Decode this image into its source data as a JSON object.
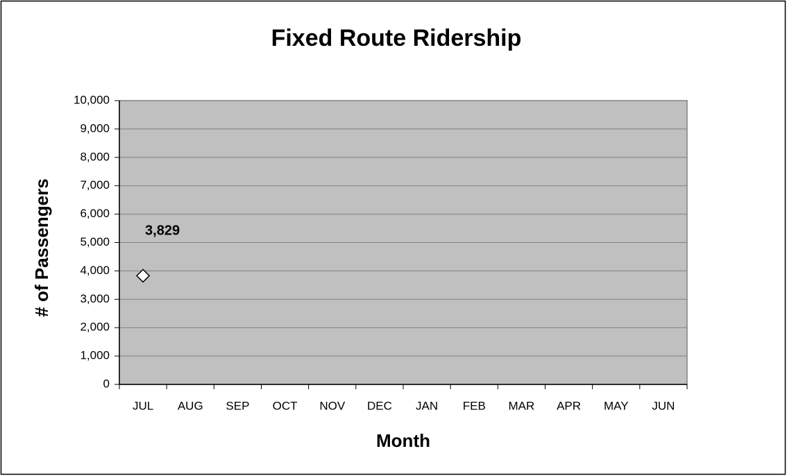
{
  "chart_data": {
    "type": "line",
    "title": "Fixed Route Ridership",
    "x_label": "Month",
    "y_label": "# of Passengers",
    "categories": [
      "JUL",
      "AUG",
      "SEP",
      "OCT",
      "NOV",
      "DEC",
      "JAN",
      "FEB",
      "MAR",
      "APR",
      "MAY",
      "JUN"
    ],
    "values": [
      3829,
      null,
      null,
      null,
      null,
      null,
      null,
      null,
      null,
      null,
      null,
      null
    ],
    "value_labels": [
      "3,829",
      null,
      null,
      null,
      null,
      null,
      null,
      null,
      null,
      null,
      null,
      null
    ],
    "marker_color": "#ffffff",
    "plot_background": "#c0c0c0",
    "ylim": [
      0,
      10000
    ],
    "yticks": [
      0,
      {
        "value": 1000,
        "label": "1,000"
      },
      {
        "value": 2000,
        "label": "2,000"
      },
      {
        "value": 3000,
        "label": "3,000"
      },
      {
        "value": 4000,
        "label": "4,000"
      },
      {
        "value": 5000,
        "label": "5,000"
      },
      {
        "value": 6000,
        "label": "6,000"
      },
      {
        "value": 7000,
        "label": "7,000"
      },
      {
        "value": 8000,
        "label": "8,000"
      },
      {
        "value": 9000,
        "label": "9,000"
      },
      {
        "value": 10000,
        "label": "10,000"
      }
    ],
    "grid": true
  }
}
